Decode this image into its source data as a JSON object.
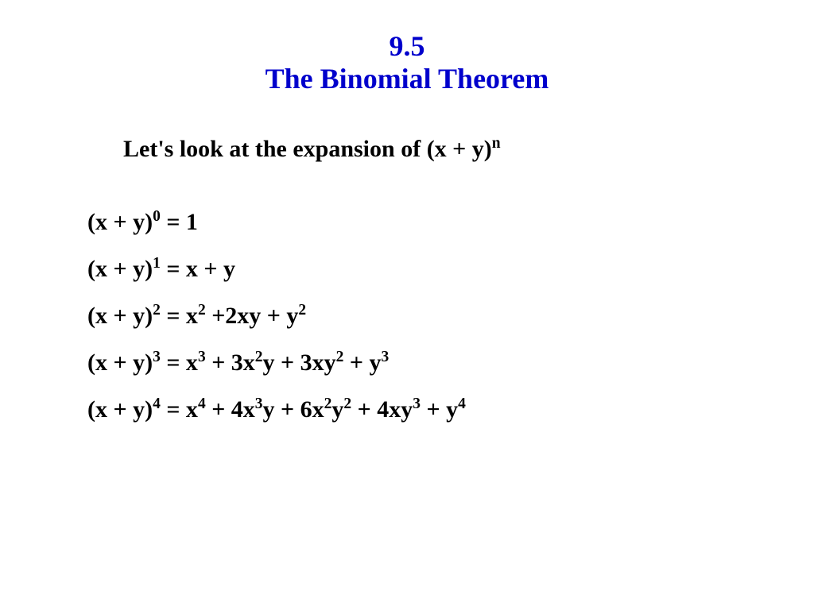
{
  "colors": {
    "title_color": "#0000cc",
    "body_color": "#000000",
    "background_color": "#ffffff"
  },
  "typography": {
    "title_fontsize": 36,
    "body_fontsize": 30,
    "font_family": "Times New Roman",
    "font_weight": "bold"
  },
  "title": {
    "section_number": "9.5",
    "section_title": "The Binomial Theorem"
  },
  "intro": {
    "prefix": "Let's look at the expansion of  (x + y)",
    "exponent": "n"
  },
  "expansions": [
    {
      "lhs_base": "(x + y)",
      "lhs_exp": "0",
      "rhs_tokens": [
        {
          "text": " = 1"
        }
      ]
    },
    {
      "lhs_base": "(x + y)",
      "lhs_exp": "1",
      "rhs_tokens": [
        {
          "text": " = x + y"
        }
      ]
    },
    {
      "lhs_base": "(x + y)",
      "lhs_exp": "2",
      "rhs_tokens": [
        {
          "text": " = x"
        },
        {
          "sup": "2"
        },
        {
          "text": " +2xy + y"
        },
        {
          "sup": "2"
        }
      ]
    },
    {
      "lhs_base": "(x + y)",
      "lhs_exp": "3",
      "rhs_tokens": [
        {
          "text": " = x"
        },
        {
          "sup": "3"
        },
        {
          "text": " + 3x"
        },
        {
          "sup": "2"
        },
        {
          "text": "y + 3xy"
        },
        {
          "sup": "2"
        },
        {
          "text": " + y"
        },
        {
          "sup": "3"
        }
      ]
    },
    {
      "lhs_base": "(x + y)",
      "lhs_exp": "4",
      "rhs_tokens": [
        {
          "text": " = x"
        },
        {
          "sup": "4"
        },
        {
          "text": " + 4x"
        },
        {
          "sup": "3"
        },
        {
          "text": "y + 6x"
        },
        {
          "sup": "2"
        },
        {
          "text": "y"
        },
        {
          "sup": "2"
        },
        {
          "text": " + 4xy"
        },
        {
          "sup": "3"
        },
        {
          "text": " + y"
        },
        {
          "sup": "4"
        }
      ]
    }
  ]
}
